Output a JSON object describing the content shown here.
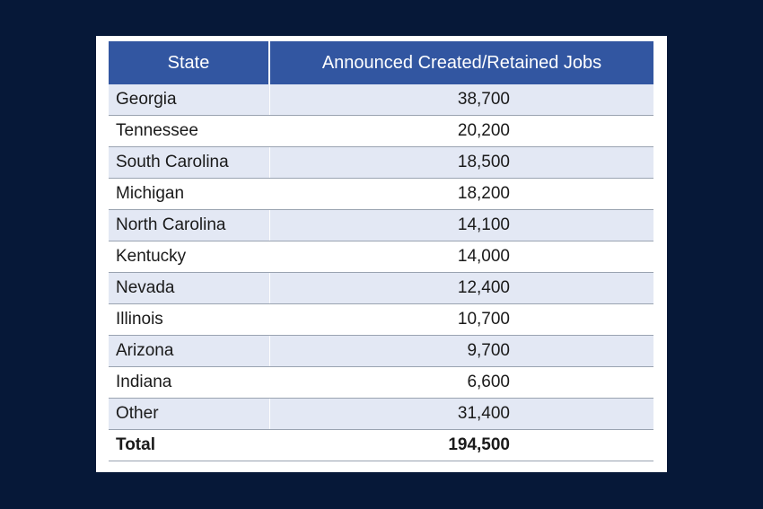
{
  "chart_data": {
    "type": "table",
    "columns": [
      "State",
      "Announced Created/Retained Jobs"
    ],
    "rows": [
      {
        "state": "Georgia",
        "jobs": "38,700"
      },
      {
        "state": "Tennessee",
        "jobs": "20,200"
      },
      {
        "state": "South Carolina",
        "jobs": "18,500"
      },
      {
        "state": "Michigan",
        "jobs": "18,200"
      },
      {
        "state": "North Carolina",
        "jobs": "14,100"
      },
      {
        "state": "Kentucky",
        "jobs": "14,000"
      },
      {
        "state": "Nevada",
        "jobs": "12,400"
      },
      {
        "state": "Illinois",
        "jobs": "10,700"
      },
      {
        "state": "Arizona",
        "jobs": "9,700"
      },
      {
        "state": "Indiana",
        "jobs": "6,600"
      },
      {
        "state": "Other",
        "jobs": "31,400"
      }
    ],
    "total": {
      "label": "Total",
      "jobs": "194,500"
    }
  },
  "colors": {
    "background": "#061838",
    "header": "#3256a1",
    "stripe": "#e3e8f4"
  }
}
